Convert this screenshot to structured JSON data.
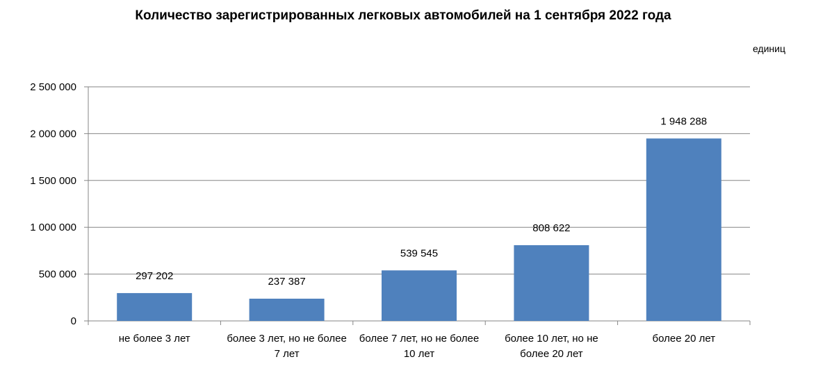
{
  "chart_data": {
    "type": "bar",
    "title": "Количество зарегистрированных легковых автомобилей на 1 сентября 2022 года",
    "unit": "единиц",
    "categories": [
      [
        "не более 3 лет"
      ],
      [
        "более 3 лет, но не более",
        "7 лет"
      ],
      [
        "более 7 лет, но не более",
        "10 лет"
      ],
      [
        "более 10 лет, но не",
        "более 20 лет"
      ],
      [
        "более 20 лет"
      ]
    ],
    "values": [
      297202,
      237387,
      539545,
      808622,
      1948288
    ],
    "value_labels": [
      "297 202",
      "237 387",
      "539 545",
      "808 622",
      "1 948 288"
    ],
    "ylim": [
      0,
      2500000
    ],
    "yticks": [
      0,
      500000,
      1000000,
      1500000,
      2000000,
      2500000
    ],
    "ytick_labels": [
      "0",
      "500 000",
      "1 000 000",
      "1 500 000",
      "2 000 000",
      "2 500 000"
    ],
    "grid": true,
    "bar_color": "#4F81BD",
    "grid_color": "#868686"
  }
}
